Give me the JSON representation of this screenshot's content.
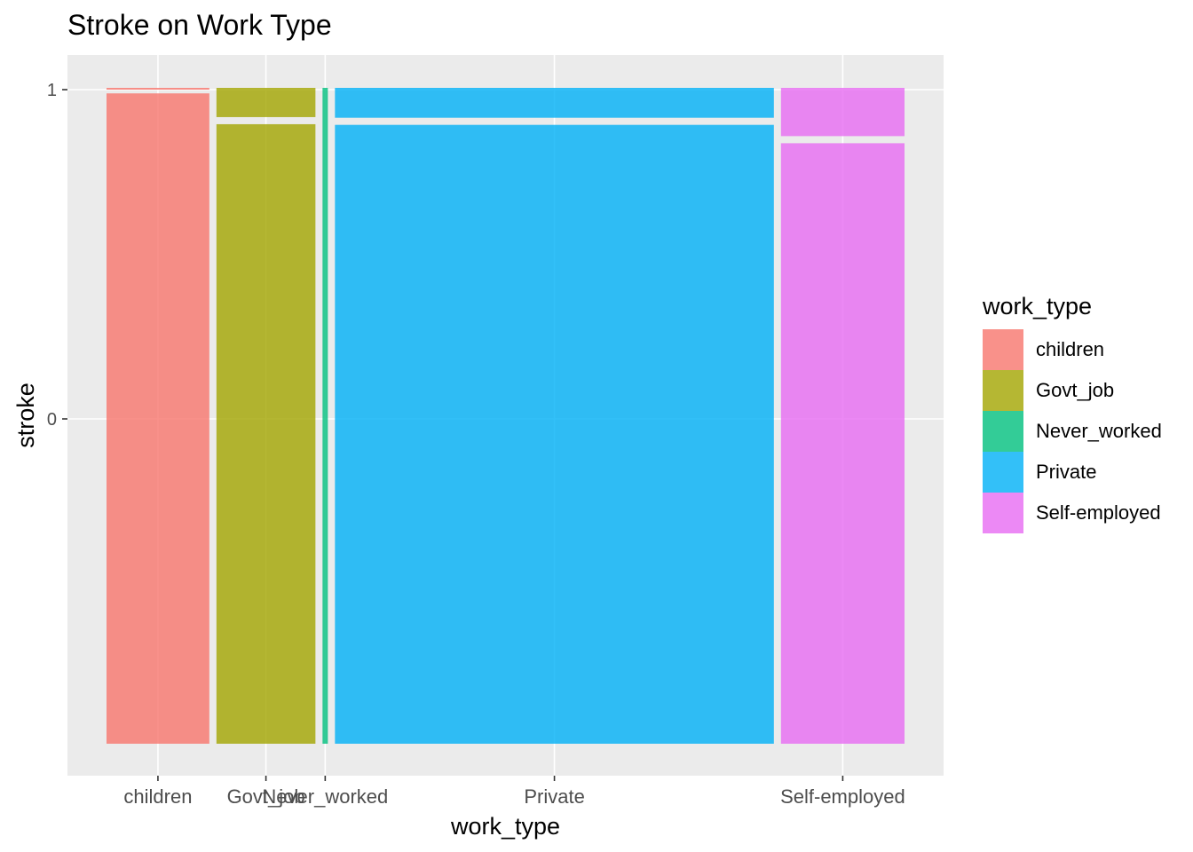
{
  "title": "Stroke on Work Type",
  "legend": {
    "title": "work_type",
    "items": [
      {
        "label": "children",
        "color": "#F8766D"
      },
      {
        "label": "Govt_job",
        "color": "#A3A500"
      },
      {
        "label": "Never_worked",
        "color": "#00BF7D"
      },
      {
        "label": "Private",
        "color": "#00B0F6"
      },
      {
        "label": "Self-employed",
        "color": "#E76BF3"
      }
    ]
  },
  "chart_data": {
    "type": "mosaic",
    "title": "Stroke on Work Type",
    "xlabel": "work_type",
    "ylabel": "stroke",
    "y_ticks": [
      "1",
      "0"
    ],
    "grid": true,
    "legend_position": "right",
    "fill_alpha": 0.8,
    "categories": [
      "children",
      "Govt_job",
      "Never_worked",
      "Private",
      "Self-employed"
    ],
    "width_share": [
      0.134,
      0.129,
      0.004,
      0.572,
      0.161
    ],
    "series": [
      {
        "name": "1",
        "values": [
          0.003,
          0.05,
          0.0,
          0.051,
          0.079
        ]
      },
      {
        "name": "0",
        "values": [
          0.997,
          0.95,
          1.0,
          0.949,
          0.921
        ]
      }
    ]
  }
}
